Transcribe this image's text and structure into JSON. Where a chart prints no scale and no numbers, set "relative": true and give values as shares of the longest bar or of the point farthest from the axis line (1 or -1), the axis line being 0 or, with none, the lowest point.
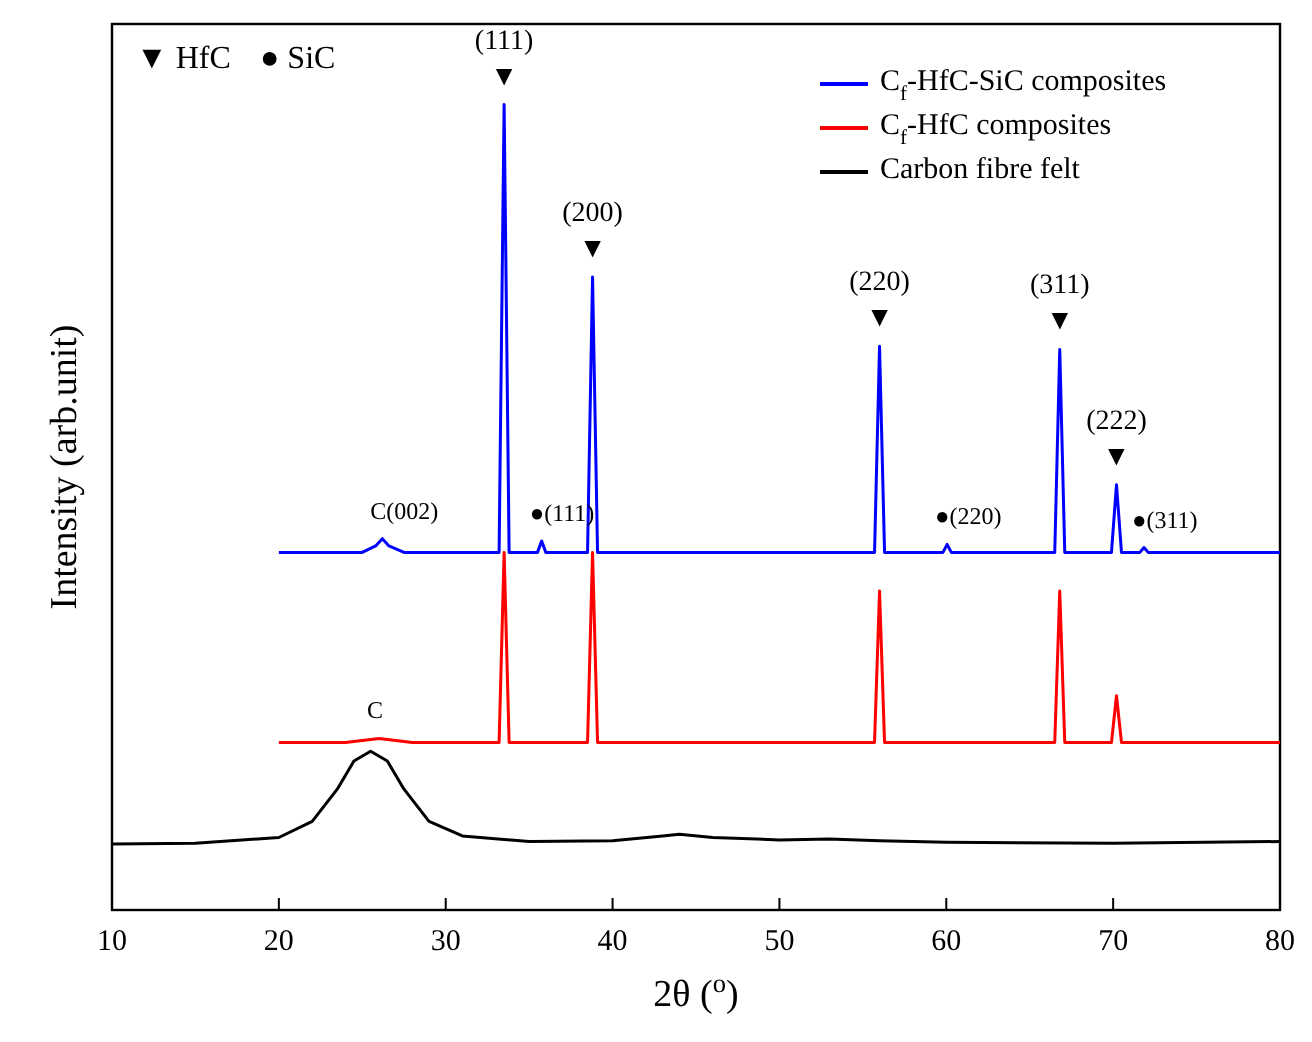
{
  "chart_data": {
    "type": "line",
    "relative": true,
    "xlabel": "2θ ($^{o}$)",
    "ylabel": "Intensity (arb.unit)",
    "xlim": [
      10,
      80
    ],
    "xticks": [
      10,
      20,
      30,
      40,
      50,
      60,
      70,
      80
    ],
    "legend": "top right",
    "grid": false,
    "marker": "none",
    "line_style": "solid",
    "series": [
      {
        "name": "C$_{f}$-HfC-SiC composites",
        "color": "#0000ff",
        "x": [
          20,
          25,
          25.8,
          26.2,
          26.6,
          27.5,
          33.2,
          33.5,
          33.8,
          35.5,
          35.75,
          36,
          38.5,
          38.8,
          39.1,
          55.7,
          56,
          56.3,
          59.8,
          60.05,
          60.3,
          66.5,
          66.8,
          67.1,
          69.9,
          70.2,
          70.5,
          71.6,
          71.85,
          72.1,
          80
        ],
        "values": [
          0.444,
          0.444,
          0.452,
          0.461,
          0.452,
          0.444,
          0.444,
          1.0,
          0.444,
          0.444,
          0.458,
          0.444,
          0.444,
          0.786,
          0.444,
          0.444,
          0.7,
          0.444,
          0.444,
          0.454,
          0.444,
          0.444,
          0.696,
          0.444,
          0.444,
          0.528,
          0.444,
          0.444,
          0.45,
          0.444,
          0.444
        ]
      },
      {
        "name": "C$_{f}$-HfC composites",
        "color": "#ff0000",
        "x": [
          20,
          24,
          26,
          28,
          33.2,
          33.5,
          33.8,
          38.5,
          38.8,
          39.1,
          55.7,
          56,
          56.3,
          66.5,
          66.8,
          67.1,
          69.9,
          70.2,
          70.5,
          80
        ],
        "values": [
          0.208,
          0.208,
          0.213,
          0.208,
          0.208,
          0.444,
          0.208,
          0.208,
          0.444,
          0.208,
          0.208,
          0.396,
          0.208,
          0.208,
          0.396,
          0.208,
          0.208,
          0.266,
          0.208,
          0.208
        ]
      },
      {
        "name": "Carbon fibre felt",
        "color": "#000000",
        "x": [
          10,
          15,
          20,
          22,
          23.5,
          24.5,
          25.5,
          26.5,
          27.5,
          29,
          31,
          35,
          40,
          43,
          44,
          46,
          50,
          53,
          56,
          60,
          70,
          80
        ],
        "values": [
          0.082,
          0.083,
          0.09,
          0.11,
          0.15,
          0.185,
          0.197,
          0.185,
          0.15,
          0.11,
          0.092,
          0.085,
          0.086,
          0.092,
          0.094,
          0.09,
          0.087,
          0.088,
          0.086,
          0.084,
          0.083,
          0.085
        ]
      }
    ],
    "annotations": [
      "▼ HfC",
      "● SiC",
      {
        "text": "C(002)",
        "x": 26.2,
        "y": 0.461
      },
      {
        "text": "▼",
        "x": 33.5,
        "y": 1.0
      },
      {
        "text": "(111)",
        "x": 33.5,
        "y": 1.0
      },
      {
        "text": "●(111)",
        "x": 35.75,
        "y": 0.458
      },
      {
        "text": "▼",
        "x": 38.8,
        "y": 0.786
      },
      {
        "text": "(200)",
        "x": 38.8,
        "y": 0.786
      },
      {
        "text": "▼",
        "x": 56,
        "y": 0.7
      },
      {
        "text": "(220)",
        "x": 56,
        "y": 0.7
      },
      {
        "text": "●(220)",
        "x": 60.05,
        "y": 0.454
      },
      {
        "text": "▼",
        "x": 66.8,
        "y": 0.696
      },
      {
        "text": "(311)",
        "x": 66.8,
        "y": 0.696
      },
      {
        "text": "▼",
        "x": 70.2,
        "y": 0.528
      },
      {
        "text": "(222)",
        "x": 70.2,
        "y": 0.528
      },
      {
        "text": "●(311)",
        "x": 71.85,
        "y": 0.45
      },
      {
        "text": "C",
        "x": 26,
        "y": 0.213
      }
    ]
  }
}
